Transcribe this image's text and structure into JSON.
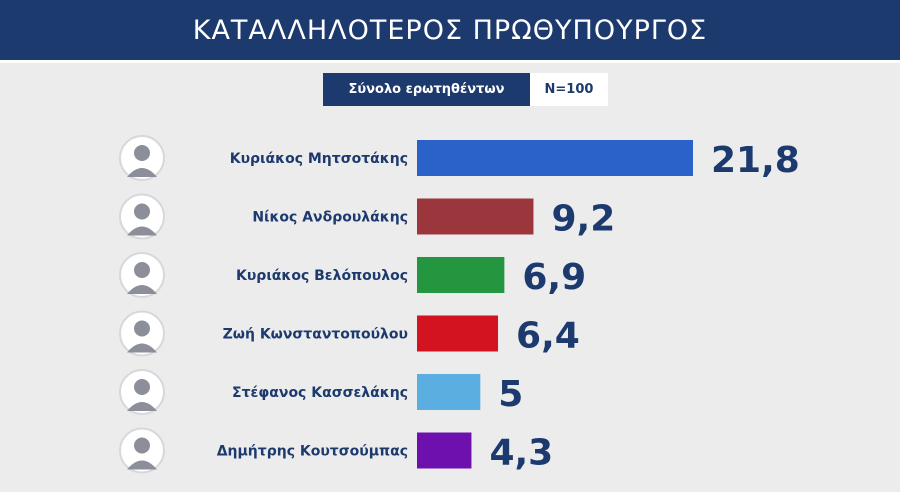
{
  "header": {
    "title": "ΚΑΤΑΛΛΗΛΟΤΕΡΟΣ ΠΡΩΘΥΠΟΥΡΓΟΣ",
    "base_label": "Σύνολο ερωτηθέντων",
    "sample": "N=100"
  },
  "colors": {
    "brand_navy": "#1d3a6e",
    "background": "#ececed",
    "value_text": "#1d3a6e",
    "label_text": "#1d3a6e"
  },
  "chart_data": {
    "type": "bar",
    "orientation": "horizontal",
    "title": "ΚΑΤΑΛΛΗΛΟΤΕΡΟΣ ΠΡΩΘΥΠΟΥΡΓΟΣ",
    "categories": [
      "Κυριάκος Μητσοτάκης",
      "Νίκος Ανδρουλάκης",
      "Κυριάκος Βελόπουλος",
      "Ζωή Κωνσταντοπούλου",
      "Στέφανος Κασσελάκης",
      "Δημήτρης Κουτσούμπας"
    ],
    "values": [
      21.8,
      9.2,
      6.9,
      6.4,
      5,
      4.3
    ],
    "value_labels": [
      "21,8",
      "9,2",
      "6,9",
      "6,4",
      "5",
      "4,3"
    ],
    "bar_colors": [
      "#2b62c9",
      "#9c363d",
      "#23963f",
      "#d3131f",
      "#5aaee0",
      "#6e10ad"
    ],
    "avatar_icons": [
      "person-avatar-icon",
      "person-avatar-icon",
      "person-avatar-icon",
      "person-avatar-icon",
      "person-avatar-icon",
      "person-avatar-icon"
    ],
    "xlim": [
      0,
      22
    ],
    "grid": false,
    "legend": "none",
    "xlabel": "",
    "ylabel": ""
  }
}
